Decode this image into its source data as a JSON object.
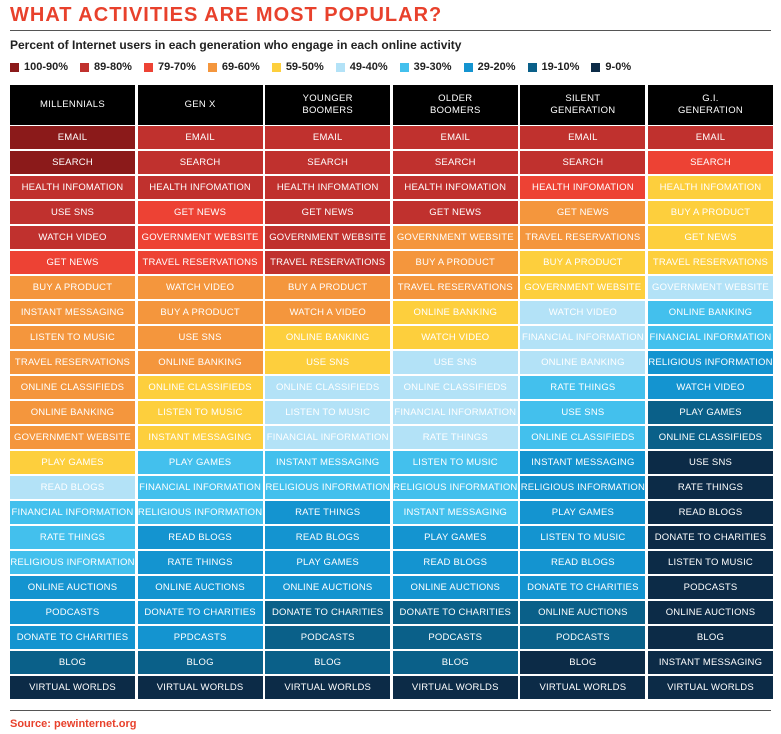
{
  "title": "WHAT ACTIVITIES ARE MOST POPULAR?",
  "subtitle": "Percent of Internet users in each generation who engage in each online activity",
  "source": "Source: pewinternet.org",
  "chart_data": {
    "type": "table",
    "title": "WHAT ACTIVITIES ARE MOST POPULAR?",
    "legend": [
      {
        "label": "100-90%",
        "color": "#8b1a1a"
      },
      {
        "label": "89-80%",
        "color": "#c0312e"
      },
      {
        "label": "79-70%",
        "color": "#ed4234"
      },
      {
        "label": "69-60%",
        "color": "#f4963d"
      },
      {
        "label": "59-50%",
        "color": "#fdcf3d"
      },
      {
        "label": "49-40%",
        "color": "#b3e2f7"
      },
      {
        "label": "39-30%",
        "color": "#43c0ed"
      },
      {
        "label": "29-20%",
        "color": "#1494d0"
      },
      {
        "label": "19-10%",
        "color": "#0a6089"
      },
      {
        "label": "9-0%",
        "color": "#0c2b47"
      }
    ],
    "columns": [
      {
        "name": "MILLENNIALS",
        "items": [
          [
            "EMAIL",
            0
          ],
          [
            "SEARCH",
            0
          ],
          [
            "HEALTH INFOMATION",
            1
          ],
          [
            "USE SNS",
            1
          ],
          [
            "WATCH VIDEO",
            1
          ],
          [
            "GET NEWS",
            2
          ],
          [
            "BUY A PRODUCT",
            3
          ],
          [
            "INSTANT MESSAGING",
            3
          ],
          [
            "LISTEN TO MUSIC",
            3
          ],
          [
            "TRAVEL RESERVATIONS",
            3
          ],
          [
            "ONLINE CLASSIFIEDS",
            3
          ],
          [
            "ONLINE BANKING",
            3
          ],
          [
            "GOVERNMENT WEBSITE",
            3
          ],
          [
            "PLAY GAMES",
            4
          ],
          [
            "READ BLOGS",
            5
          ],
          [
            "FINANCIAL INFORMATION",
            6
          ],
          [
            "RATE THINGS",
            6
          ],
          [
            "RELIGIOUS INFORMATION",
            6
          ],
          [
            "ONLINE AUCTIONS",
            7
          ],
          [
            "PODCASTS",
            7
          ],
          [
            "DONATE TO CHARITIES",
            7
          ],
          [
            "BLOG",
            8
          ],
          [
            "VIRTUAL WORLDS",
            9
          ]
        ]
      },
      {
        "name": "GEN X",
        "items": [
          [
            "EMAIL",
            1
          ],
          [
            "SEARCH",
            1
          ],
          [
            "HEALTH INFOMATION",
            1
          ],
          [
            "GET NEWS",
            2
          ],
          [
            "GOVERNMENT WEBSITE",
            2
          ],
          [
            "TRAVEL RESERVATIONS",
            2
          ],
          [
            "WATCH VIDEO",
            3
          ],
          [
            "BUY A PRODUCT",
            3
          ],
          [
            "USE SNS",
            3
          ],
          [
            "ONLINE BANKING",
            3
          ],
          [
            "ONLINE CLASSIFIEDS",
            4
          ],
          [
            "LISTEN TO MUSIC",
            4
          ],
          [
            "INSTANT MESSAGING",
            4
          ],
          [
            "PLAY GAMES",
            6
          ],
          [
            "FINANCIAL INFORMATION",
            6
          ],
          [
            "RELIGIOUS INFORMATION",
            6
          ],
          [
            "READ BLOGS",
            7
          ],
          [
            "RATE THINGS",
            7
          ],
          [
            "ONLINE AUCTIONS",
            7
          ],
          [
            "DONATE TO CHARITIES",
            7
          ],
          [
            "PPDCASTS",
            7
          ],
          [
            "BLOG",
            8
          ],
          [
            "VIRTUAL WORLDS",
            9
          ]
        ]
      },
      {
        "name": "YOUNGER\nBOOMERS",
        "items": [
          [
            "EMAIL",
            1
          ],
          [
            "SEARCH",
            1
          ],
          [
            "HEALTH INFOMATION",
            1
          ],
          [
            "GET NEWS",
            1
          ],
          [
            "GOVERNMENT WEBSITE",
            1
          ],
          [
            "TRAVEL RESERVATIONS",
            1
          ],
          [
            "BUY A PRODUCT",
            3
          ],
          [
            "WATCH A VIDEO",
            3
          ],
          [
            "ONLINE BANKING",
            4
          ],
          [
            "USE SNS",
            4
          ],
          [
            "ONLINE CLASSIFIEDS",
            5
          ],
          [
            "LISTEN TO MUSIC",
            5
          ],
          [
            "FINANCIAL INFORMATION",
            5
          ],
          [
            "INSTANT MESSAGING",
            6
          ],
          [
            "RELIGIOUS INFORMATION",
            6
          ],
          [
            "RATE THINGS",
            7
          ],
          [
            "READ BLOGS",
            7
          ],
          [
            "PLAY GAMES",
            7
          ],
          [
            "ONLINE AUCTIONS",
            7
          ],
          [
            "DONATE TO CHARITIES",
            8
          ],
          [
            "PODCASTS",
            8
          ],
          [
            "BLOG",
            8
          ],
          [
            "VIRTUAL WORLDS",
            9
          ]
        ]
      },
      {
        "name": "OLDER\nBOOMERS",
        "items": [
          [
            "EMAIL",
            1
          ],
          [
            "SEARCH",
            1
          ],
          [
            "HEALTH INFOMATION",
            1
          ],
          [
            "GET NEWS",
            1
          ],
          [
            "GOVERNMENT WEBSITE",
            3
          ],
          [
            "BUY A PRODUCT",
            3
          ],
          [
            "TRAVEL RESERVATIONS",
            3
          ],
          [
            "ONLINE BANKING",
            4
          ],
          [
            "WATCH VIDEO",
            4
          ],
          [
            "USE SNS",
            5
          ],
          [
            "ONLINE CLASSIFIEDS",
            5
          ],
          [
            "FINANCIAL INFORMATION",
            5
          ],
          [
            "RATE THINGS",
            5
          ],
          [
            "LISTEN TO MUSIC",
            6
          ],
          [
            "RELIGIOUS INFORMATION",
            6
          ],
          [
            "INSTANT MESSAGING",
            6
          ],
          [
            "PLAY GAMES",
            7
          ],
          [
            "READ BLOGS",
            7
          ],
          [
            "ONLINE AUCTIONS",
            7
          ],
          [
            "DONATE TO CHARITIES",
            8
          ],
          [
            "PODCASTS",
            8
          ],
          [
            "BLOG",
            8
          ],
          [
            "VIRTUAL WORLDS",
            9
          ]
        ]
      },
      {
        "name": "SILENT\nGENERATION",
        "items": [
          [
            "EMAIL",
            1
          ],
          [
            "SEARCH",
            1
          ],
          [
            "HEALTH INFOMATION",
            2
          ],
          [
            "GET NEWS",
            3
          ],
          [
            "TRAVEL RESERVATIONS",
            3
          ],
          [
            "BUY A PRODUCT",
            4
          ],
          [
            "GOVERNMENT WEBSITE",
            4
          ],
          [
            "WATCH VIDEO",
            5
          ],
          [
            "FINANCIAL INFORMATION",
            5
          ],
          [
            "ONLINE BANKING",
            5
          ],
          [
            "RATE THINGS",
            6
          ],
          [
            "USE SNS",
            6
          ],
          [
            "ONLINE CLASSIFIEDS",
            6
          ],
          [
            "INSTANT MESSAGING",
            7
          ],
          [
            "RELIGIOUS INFORMATION",
            7
          ],
          [
            "PLAY GAMES",
            7
          ],
          [
            "LISTEN TO MUSIC",
            7
          ],
          [
            "READ BLOGS",
            7
          ],
          [
            "DONATE TO CHARITIES",
            7
          ],
          [
            "ONLINE AUCTIONS",
            8
          ],
          [
            "PODCASTS",
            8
          ],
          [
            "BLOG",
            9
          ],
          [
            "VIRTUAL WORLDS",
            9
          ]
        ]
      },
      {
        "name": "G.I.\nGENERATION",
        "items": [
          [
            "EMAIL",
            1
          ],
          [
            "SEARCH",
            2
          ],
          [
            "HEALTH INFOMATION",
            4
          ],
          [
            "BUY A PRODUCT",
            4
          ],
          [
            "GET NEWS",
            4
          ],
          [
            "TRAVEL RESERVATIONS",
            4
          ],
          [
            "GOVERNMENT WEBSITE",
            5
          ],
          [
            "ONLINE BANKING",
            6
          ],
          [
            "FINANCIAL INFORMATION",
            6
          ],
          [
            "RELIGIOUS INFORMATION",
            7
          ],
          [
            "WATCH VIDEO",
            7
          ],
          [
            "PLAY GAMES",
            8
          ],
          [
            "ONLINE CLASSIFIEDS",
            8
          ],
          [
            "USE SNS",
            9
          ],
          [
            "RATE THINGS",
            9
          ],
          [
            "READ BLOGS",
            9
          ],
          [
            "DONATE TO CHARITIES",
            9
          ],
          [
            "LISTEN TO MUSIC",
            9
          ],
          [
            "PODCASTS",
            9
          ],
          [
            "ONLINE AUCTIONS",
            9
          ],
          [
            "BLOG",
            9
          ],
          [
            "INSTANT MESSAGING",
            9
          ],
          [
            "VIRTUAL WORLDS",
            9
          ]
        ]
      }
    ]
  }
}
